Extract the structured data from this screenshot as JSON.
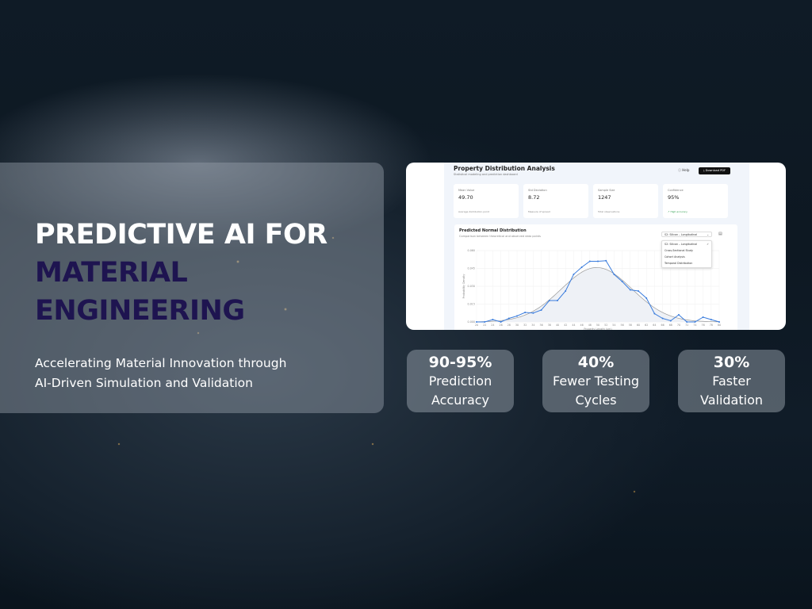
{
  "headline": {
    "line1": "PREDICTIVE AI FOR",
    "line2": "MATERIAL",
    "line3": "ENGINEERING"
  },
  "subtitle": {
    "line1": "Accelerating Material Innovation through",
    "line2": "AI-Driven Simulation and Validation"
  },
  "dashboard": {
    "title": "Property Distribution Analysis",
    "subtitle": "Statistical modeling and prediction dashboard",
    "help_label": "Help",
    "download_label": "Download PDF",
    "cards": [
      {
        "label": "Mean Value",
        "value": "49.70",
        "note": "Average distribution point"
      },
      {
        "label": "Std Deviation",
        "value": "8.72",
        "note": "Measure of spread"
      },
      {
        "label": "Sample Size",
        "value": "1247",
        "note": "Total observations"
      },
      {
        "label": "Confidence",
        "value": "95%",
        "note": "↗ High accuracy"
      }
    ],
    "chart_title": "Predicted Normal Distribution",
    "chart_subtitle": "Comparison between theoretical and observed data points",
    "dropdown": {
      "selected": "S2: Silicon – Longitudinal",
      "options": [
        "S2: Silicon – Longitudinal",
        "Cross-Sectional Study",
        "Cohort Analysis",
        "Temporal Distribution"
      ]
    },
    "accent": "#3b7ddd"
  },
  "chart_data": {
    "type": "line",
    "xlabel": "Property Length (um)",
    "ylabel": "Probability Density",
    "xlim": [
      20,
      80
    ],
    "ylim": [
      0,
      0.06
    ],
    "xticks": [
      "20",
      "22",
      "24",
      "26",
      "28",
      "30",
      "32",
      "34",
      "36",
      "38",
      "40",
      "42",
      "44",
      "46",
      "48",
      "50",
      "52",
      "54",
      "56",
      "58",
      "60",
      "62",
      "64",
      "66",
      "68",
      "70",
      "72",
      "74",
      "76",
      "78",
      "80"
    ],
    "yticks": [
      "0.000",
      "0.015",
      "0.030",
      "0.045",
      "0.060"
    ],
    "grid": true,
    "x": [
      20,
      22,
      24,
      26,
      28,
      30,
      32,
      34,
      36,
      38,
      40,
      42,
      44,
      46,
      48,
      50,
      52,
      54,
      56,
      58,
      60,
      62,
      64,
      66,
      68,
      70,
      72,
      74,
      76,
      78,
      80
    ],
    "series": [
      {
        "values": [
          0,
          0,
          0.002,
          0,
          0.003,
          0.005,
          0.008,
          0.0075,
          0.01,
          0.018,
          0.018,
          0.026,
          0.04,
          0.046,
          0.051,
          0.051,
          0.0515,
          0.04,
          0.034,
          0.027,
          0.026,
          0.02,
          0.007,
          0.003,
          0.001,
          0.006,
          0,
          0,
          0.004,
          0.002,
          0
        ]
      }
    ],
    "theoretical": {
      "mean": 49.7,
      "std": 8.72
    }
  },
  "stats": [
    {
      "value": "90-95%",
      "label1": "Prediction",
      "label2": "Accuracy"
    },
    {
      "value": "40%",
      "label1": "Fewer Testing",
      "label2": "Cycles"
    },
    {
      "value": "30%",
      "label1": "Faster",
      "label2": "Validation"
    }
  ]
}
